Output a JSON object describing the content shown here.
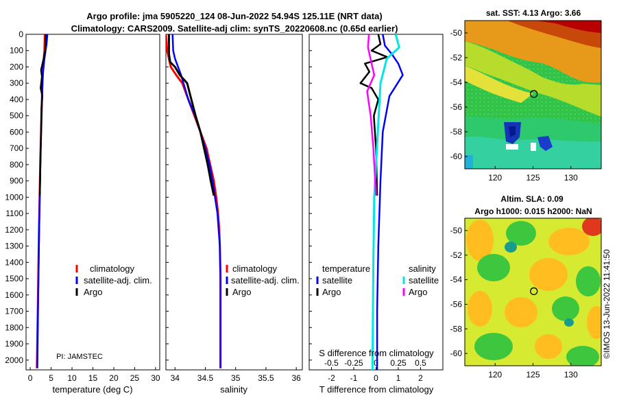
{
  "header": {
    "title_line1": "Argo profile: jma 5905220_124 08-Jun-2022 54.94S 125.11E (NRT data)",
    "title_line2": "Climatology: CARS2009. Satellite-adj clim: synTS_20220608.nc (0.65d earlier)"
  },
  "pi_label": "PI: JAMSTEC",
  "side_stamp": "©IMOS 13-Jun-2022 11:41:50",
  "colors": {
    "climatology": "#ff0000",
    "satellite": "#0000ff",
    "argo": "#000000",
    "cyan": "#00e5e5",
    "magenta": "#ff00ff"
  },
  "chart_data": [
    {
      "type": "line",
      "xlabel": "temperature (deg C)",
      "ylabel": "",
      "xlim": [
        -1,
        31
      ],
      "ylim": [
        2060,
        0
      ],
      "xticks": [
        "0",
        "5",
        "10",
        "15",
        "20",
        "25",
        "30"
      ],
      "xtick_values": [
        0,
        5,
        10,
        15,
        20,
        25,
        30
      ],
      "yticks": [
        "0",
        "100",
        "200",
        "300",
        "400",
        "500",
        "600",
        "700",
        "800",
        "900",
        "1000",
        "1100",
        "1200",
        "1300",
        "1400",
        "1500",
        "1600",
        "1700",
        "1800",
        "1900",
        "2000"
      ],
      "ytick_values": [
        0,
        100,
        200,
        300,
        400,
        500,
        600,
        700,
        800,
        900,
        1000,
        1100,
        1200,
        1300,
        1400,
        1500,
        1600,
        1700,
        1800,
        1900,
        2000
      ],
      "legend": [
        "climatology",
        "satellite-adj. clim.",
        "Argo"
      ],
      "series": [
        {
          "name": "climatology",
          "points": [
            [
              3.5,
              0
            ],
            [
              3.4,
              100
            ],
            [
              3.1,
              200
            ],
            [
              2.9,
              300
            ],
            [
              2.7,
              500
            ],
            [
              2.4,
              800
            ],
            [
              2.1,
              1200
            ],
            [
              1.8,
              1700
            ],
            [
              1.6,
              2050
            ]
          ]
        },
        {
          "name": "satellite-adj. clim.",
          "points": [
            [
              4.1,
              0
            ],
            [
              3.9,
              60
            ],
            [
              3.4,
              150
            ],
            [
              3.0,
              250
            ],
            [
              2.8,
              400
            ],
            [
              2.5,
              700
            ],
            [
              2.2,
              1100
            ],
            [
              1.9,
              1600
            ],
            [
              1.7,
              2050
            ]
          ]
        },
        {
          "name": "Argo",
          "points": [
            [
              3.7,
              0
            ],
            [
              3.6,
              100
            ],
            [
              3.2,
              150
            ],
            [
              2.6,
              220
            ],
            [
              2.8,
              260
            ],
            [
              2.5,
              330
            ],
            [
              2.9,
              380
            ],
            [
              2.7,
              450
            ],
            [
              2.6,
              600
            ],
            [
              2.5,
              700
            ],
            [
              2.4,
              850
            ],
            [
              2.3,
              990
            ]
          ]
        }
      ]
    },
    {
      "type": "line",
      "xlabel": "salinity",
      "xlim": [
        33.85,
        36.1
      ],
      "ylim": [
        2060,
        0
      ],
      "xticks": [
        "34",
        "34.5",
        "35",
        "35.5",
        "36"
      ],
      "xtick_values": [
        34,
        34.5,
        35,
        35.5,
        36
      ],
      "legend": [
        "climatology",
        "satellite-adj. clim.",
        "Argo"
      ],
      "series": [
        {
          "name": "climatology",
          "points": [
            [
              33.85,
              0
            ],
            [
              33.87,
              100
            ],
            [
              33.93,
              200
            ],
            [
              34.02,
              250
            ],
            [
              34.12,
              300
            ],
            [
              34.22,
              400
            ],
            [
              34.32,
              500
            ],
            [
              34.42,
              600
            ],
            [
              34.52,
              700
            ],
            [
              34.58,
              800
            ],
            [
              34.64,
              900
            ],
            [
              34.68,
              1000
            ],
            [
              34.71,
              1100
            ],
            [
              34.73,
              1200
            ],
            [
              34.74,
              1300
            ],
            [
              34.75,
              1500
            ],
            [
              34.75,
              2050
            ]
          ]
        },
        {
          "name": "satellite-adj. clim.",
          "points": [
            [
              33.96,
              0
            ],
            [
              33.97,
              100
            ],
            [
              34.0,
              150
            ],
            [
              34.1,
              250
            ],
            [
              34.22,
              400
            ],
            [
              34.33,
              500
            ],
            [
              34.42,
              600
            ],
            [
              34.5,
              700
            ],
            [
              34.57,
              800
            ],
            [
              34.62,
              900
            ],
            [
              34.66,
              1000
            ],
            [
              34.7,
              1100
            ],
            [
              34.72,
              1200
            ],
            [
              34.74,
              1300
            ],
            [
              34.75,
              1500
            ],
            [
              34.75,
              2050
            ]
          ]
        },
        {
          "name": "Argo",
          "points": [
            [
              33.9,
              0
            ],
            [
              33.9,
              120
            ],
            [
              33.92,
              170
            ],
            [
              34.0,
              200
            ],
            [
              34.08,
              250
            ],
            [
              34.2,
              300
            ],
            [
              34.27,
              400
            ],
            [
              34.34,
              500
            ],
            [
              34.42,
              600
            ],
            [
              34.48,
              700
            ],
            [
              34.54,
              800
            ],
            [
              34.59,
              900
            ],
            [
              34.64,
              990
            ]
          ]
        }
      ]
    },
    {
      "type": "line",
      "xlabel": "T difference from climatology",
      "x2label": "S difference from climatology",
      "xlim": [
        -3,
        3
      ],
      "ylim": [
        2060,
        0
      ],
      "xticks": [
        "-2",
        "-1",
        "0",
        "1",
        "2"
      ],
      "xtick_values": [
        -2,
        -1,
        0,
        1,
        2
      ],
      "x2ticks": [
        "-0.5",
        "-0.25",
        "0",
        "0.25",
        "0.5"
      ],
      "x2tick_values": [
        -0.5,
        -0.25,
        0,
        0.25,
        0.5
      ],
      "legend_temperature_title": "temperature",
      "legend_salinity_title": "salinity",
      "legend_temperature": [
        "satellite",
        "Argo"
      ],
      "legend_salinity": [
        "satellite",
        "Argo"
      ],
      "series": [
        {
          "name": "T satellite",
          "points": [
            [
              0.3,
              0
            ],
            [
              0.4,
              70
            ],
            [
              0.7,
              120
            ],
            [
              1.0,
              180
            ],
            [
              1.2,
              250
            ],
            [
              0.6,
              380
            ],
            [
              0.3,
              600
            ],
            [
              0.2,
              900
            ],
            [
              0.1,
              1300
            ],
            [
              0.05,
              1700
            ],
            [
              0.05,
              2060
            ]
          ]
        },
        {
          "name": "T Argo",
          "points": [
            [
              0.1,
              0
            ],
            [
              0.2,
              60
            ],
            [
              -0.2,
              100
            ],
            [
              0.5,
              140
            ],
            [
              -0.5,
              180
            ],
            [
              -0.3,
              230
            ],
            [
              -0.7,
              300
            ],
            [
              -0.2,
              330
            ],
            [
              0.1,
              400
            ],
            [
              -0.1,
              500
            ],
            [
              0.0,
              700
            ],
            [
              0.05,
              990
            ]
          ]
        },
        {
          "name": "S satellite",
          "points": [
            [
              0.22,
              0
            ],
            [
              0.26,
              80
            ],
            [
              0.12,
              150
            ],
            [
              0.05,
              300
            ],
            [
              0.02,
              600
            ],
            [
              -0.02,
              1000
            ],
            [
              -0.03,
              1400
            ],
            [
              -0.04,
              2060
            ]
          ]
        },
        {
          "name": "S Argo",
          "points": [
            [
              -0.08,
              0
            ],
            [
              -0.09,
              80
            ],
            [
              -0.05,
              180
            ],
            [
              -0.02,
              250
            ],
            [
              -0.1,
              350
            ],
            [
              -0.06,
              500
            ],
            [
              -0.03,
              700
            ],
            [
              0.0,
              990
            ]
          ]
        }
      ]
    },
    {
      "type": "heatmap",
      "title": "sat. SST: 4.13 Argo: 3.66",
      "xticks": [
        "120",
        "125",
        "130"
      ],
      "yticks": [
        "-50",
        "-52",
        "-54",
        "-56",
        "-58",
        "-60"
      ],
      "xlim": [
        116,
        134
      ],
      "ylim": [
        -61,
        -49
      ],
      "marker": {
        "lon": 125.11,
        "lat": -54.94
      }
    },
    {
      "type": "heatmap",
      "title_line1": "Altim. SLA: 0.09",
      "title_line2": "Argo h1000: 0.015 h2000: NaN",
      "xticks": [
        "120",
        "125",
        "130"
      ],
      "yticks": [
        "-50",
        "-52",
        "-54",
        "-56",
        "-58",
        "-60"
      ],
      "xlim": [
        116,
        134
      ],
      "ylim": [
        -61,
        -49
      ],
      "marker": {
        "lon": 125.11,
        "lat": -54.94
      }
    }
  ]
}
